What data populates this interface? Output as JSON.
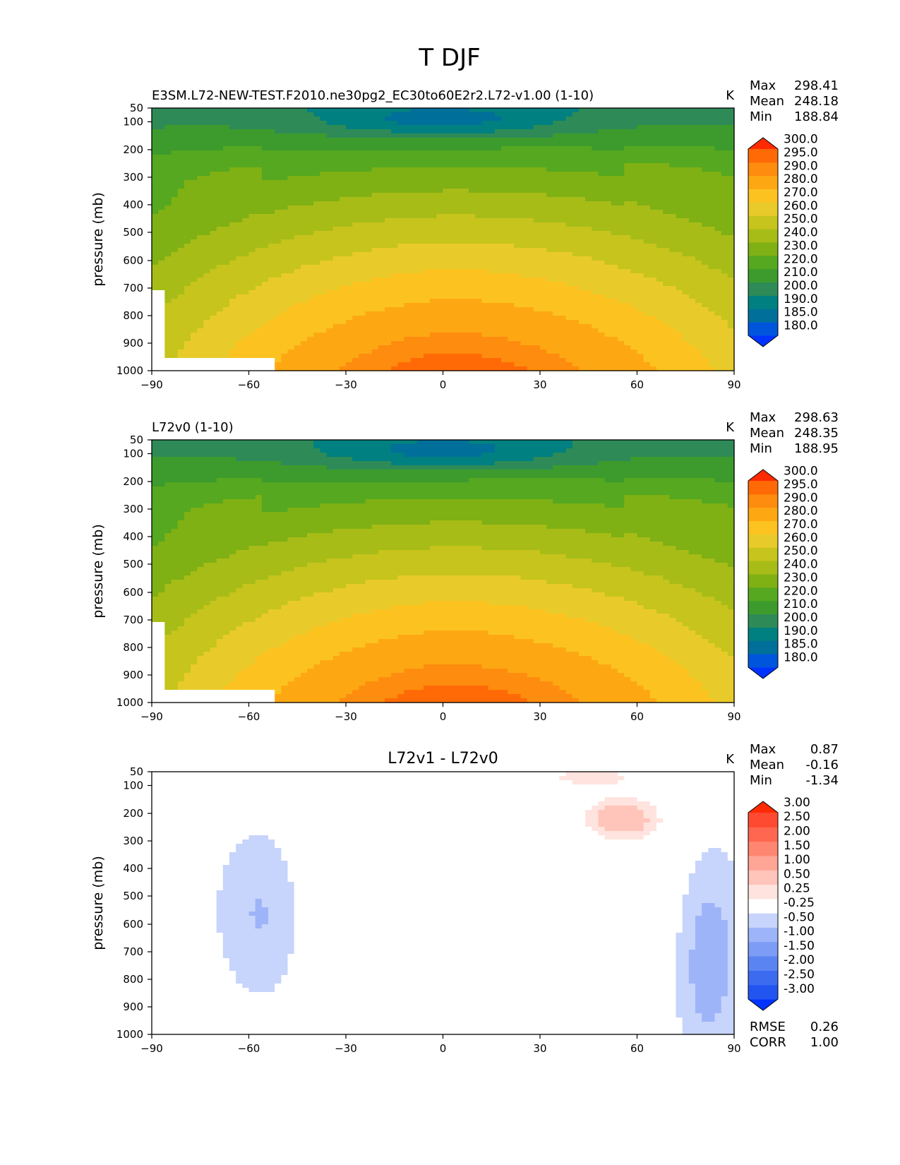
{
  "figure": {
    "title": "T DJF"
  },
  "chart_data": [
    {
      "type": "contour",
      "title": "E3SM.L72-NEW-TEST.F2010.ne30pg2_EC30to60E2r2.L72-v1.00 (1-10)",
      "units": "K",
      "ylabel": "pressure (mb)",
      "xlim": [
        -90,
        90
      ],
      "ylim": [
        1000,
        50
      ],
      "xticks": [
        "−90",
        "−60",
        "−30",
        "0",
        "30",
        "60",
        "90"
      ],
      "yticks": [
        "50",
        "100",
        "200",
        "300",
        "400",
        "500",
        "600",
        "700",
        "800",
        "900",
        "1000"
      ],
      "stats": [
        {
          "label": "Max",
          "value": "298.41"
        },
        {
          "label": "Mean",
          "value": "248.18"
        },
        {
          "label": "Min",
          "value": "188.84"
        }
      ],
      "colorbar": {
        "levels": [
          "180.0",
          "185.0",
          "190.0",
          "200.0",
          "210.0",
          "220.0",
          "230.0",
          "240.0",
          "250.0",
          "260.0",
          "270.0",
          "280.0",
          "290.0",
          "295.0",
          "300.0"
        ],
        "colors": [
          "#0033ff",
          "#0055dd",
          "#006f9a",
          "#008080",
          "#2e8b57",
          "#3c9b2c",
          "#55a820",
          "#7fb014",
          "#a7bc17",
          "#c6c41d",
          "#e8cb2a",
          "#fcc320",
          "#fda813",
          "#fe8c0e",
          "#ff6a06",
          "#ff2a00"
        ]
      },
      "levels_k": [
        180,
        185,
        190,
        200,
        210,
        220,
        230,
        240,
        250,
        260,
        270,
        280,
        290,
        295,
        300
      ],
      "missing_below": true
    },
    {
      "type": "contour",
      "title": "L72v0 (1-10)",
      "units": "K",
      "ylabel": "pressure (mb)",
      "xlim": [
        -90,
        90
      ],
      "ylim": [
        1000,
        50
      ],
      "xticks": [
        "−90",
        "−60",
        "−30",
        "0",
        "30",
        "60",
        "90"
      ],
      "yticks": [
        "50",
        "100",
        "200",
        "300",
        "400",
        "500",
        "600",
        "700",
        "800",
        "900",
        "1000"
      ],
      "stats": [
        {
          "label": "Max",
          "value": "298.63"
        },
        {
          "label": "Mean",
          "value": "248.35"
        },
        {
          "label": "Min",
          "value": "188.95"
        }
      ],
      "colorbar": {
        "levels": [
          "180.0",
          "185.0",
          "190.0",
          "200.0",
          "210.0",
          "220.0",
          "230.0",
          "240.0",
          "250.0",
          "260.0",
          "270.0",
          "280.0",
          "290.0",
          "295.0",
          "300.0"
        ],
        "colors": [
          "#0033ff",
          "#0055dd",
          "#006f9a",
          "#008080",
          "#2e8b57",
          "#3c9b2c",
          "#55a820",
          "#7fb014",
          "#a7bc17",
          "#c6c41d",
          "#e8cb2a",
          "#fcc320",
          "#fda813",
          "#fe8c0e",
          "#ff6a06",
          "#ff2a00"
        ]
      },
      "levels_k": [
        180,
        185,
        190,
        200,
        210,
        220,
        230,
        240,
        250,
        260,
        270,
        280,
        290,
        295,
        300
      ],
      "missing_below": true
    },
    {
      "type": "contour",
      "title": "L72v1 - L72v0",
      "units": "K",
      "ylabel": "pressure (mb)",
      "xlim": [
        -90,
        90
      ],
      "ylim": [
        1000,
        50
      ],
      "xticks": [
        "−90",
        "−60",
        "−30",
        "0",
        "30",
        "60",
        "90"
      ],
      "yticks": [
        "50",
        "100",
        "200",
        "300",
        "400",
        "500",
        "600",
        "700",
        "800",
        "900",
        "1000"
      ],
      "stats": [
        {
          "label": "Max",
          "value": "0.87"
        },
        {
          "label": "Mean",
          "value": "-0.16"
        },
        {
          "label": "Min",
          "value": "-1.34"
        }
      ],
      "extra_stats": [
        {
          "label": "RMSE",
          "value": "0.26"
        },
        {
          "label": "CORR",
          "value": "1.00"
        }
      ],
      "colorbar": {
        "levels": [
          "-3.00",
          "-2.50",
          "-2.00",
          "-1.50",
          "-1.00",
          "-0.50",
          "-0.25",
          "0.25",
          "0.50",
          "1.00",
          "1.50",
          "2.00",
          "2.50",
          "3.00"
        ],
        "colors": [
          "#0033ff",
          "#2255f0",
          "#3d6bf0",
          "#5b84f3",
          "#7c9cf6",
          "#9db4f8",
          "#c7d4fb",
          "#ffffff",
          "#ffe3de",
          "#ffc4ba",
          "#ffa596",
          "#ff8670",
          "#ff6750",
          "#ff4a32",
          "#ff2a00"
        ]
      },
      "levels_k": [
        -3,
        -2.5,
        -2,
        -1.5,
        -1,
        -0.5,
        -0.25,
        0.25,
        0.5,
        1,
        1.5,
        2,
        2.5,
        3
      ]
    }
  ]
}
